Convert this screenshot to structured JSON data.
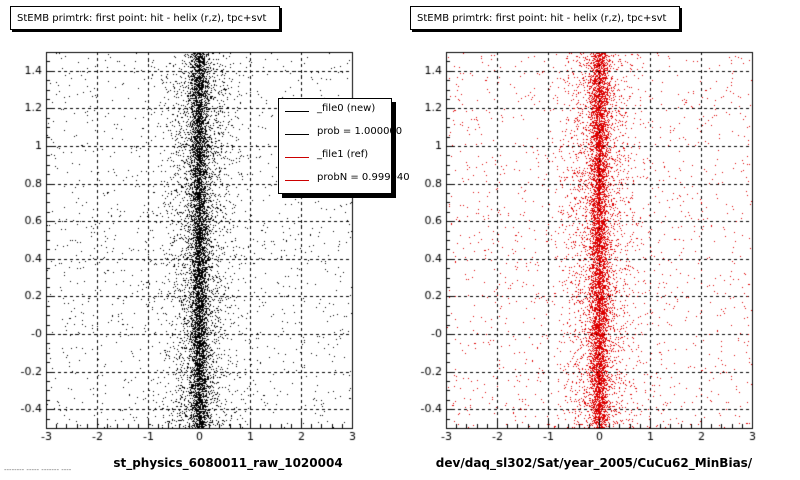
{
  "chart_data": [
    {
      "type": "scatter",
      "title": "StEMB primtrk: first point: hit - helix (r,z), tpc+svt",
      "xlabel": "st_physics_6080011_raw_1020004",
      "ylabel": "",
      "xlim": [
        -3,
        3
      ],
      "ylim": [
        -0.5,
        1.5
      ],
      "x_ticks": [
        "-3",
        "-2",
        "-1",
        "0",
        "1",
        "2",
        "3"
      ],
      "y_ticks": [
        "-0.4",
        "-0.2",
        "-0",
        "0.2",
        "0.4",
        "0.6",
        "0.8",
        "1",
        "1.2",
        "1.4"
      ],
      "grid": true,
      "marker_color": "#000000",
      "distribution": {
        "x_center": 0.0,
        "x_core_width": 0.1,
        "y_range": [
          -0.5,
          1.5
        ]
      },
      "legend": {
        "placement": "top-right",
        "entries": [
          {
            "label": "_file0 (new)",
            "color": "#000000"
          },
          {
            "label": "prob = 1.000000",
            "color": "#000000"
          },
          {
            "label": "_file1 (ref)",
            "color": "#cc0000"
          },
          {
            "label": "probN = 0.999940",
            "color": "#cc0000"
          }
        ]
      }
    },
    {
      "type": "scatter",
      "title": "StEMB primtrk: first point: hit - helix (r,z), tpc+svt",
      "xlabel": "dev/daq_sl302/Sat/year_2005/CuCu62_MinBias/",
      "ylabel": "",
      "xlim": [
        -3,
        3
      ],
      "ylim": [
        -0.5,
        1.5
      ],
      "x_ticks": [
        "-3",
        "-2",
        "-1",
        "0",
        "1",
        "2",
        "3"
      ],
      "y_ticks": [
        "-0.4",
        "-0.2",
        "-0",
        "0.2",
        "0.4",
        "0.6",
        "0.8",
        "1",
        "1.2",
        "1.4"
      ],
      "grid": true,
      "marker_color": "#dd0000",
      "distribution": {
        "x_center": 0.0,
        "x_core_width": 0.1,
        "y_range": [
          -0.5,
          1.5
        ]
      }
    }
  ],
  "footer": "-------- ----- ------- ----"
}
